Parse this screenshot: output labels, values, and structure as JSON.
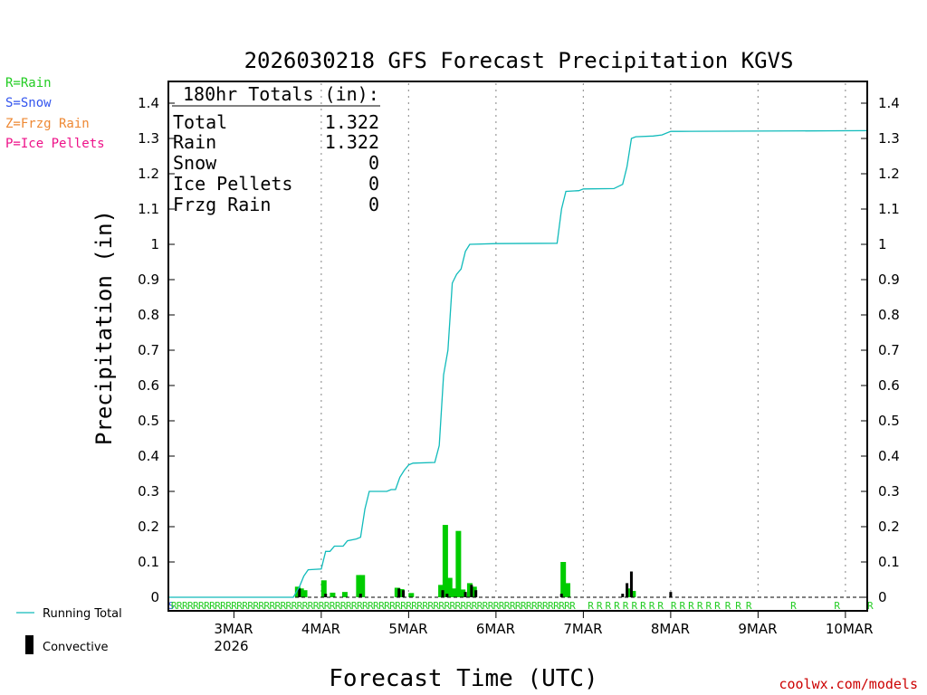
{
  "chart_data": {
    "type": "bar+line",
    "title": "2026030218 GFS Forecast Precipitation KGVS",
    "xlabel": "Forecast Time (UTC)",
    "ylabel": "Precipitation (in)",
    "ylim": [
      0,
      1.45
    ],
    "yticks": [
      "0",
      "0.1",
      "0.2",
      "0.3",
      "0.4",
      "0.5",
      "0.6",
      "0.7",
      "0.8",
      "0.9",
      "1",
      "1.1",
      "1.2",
      "1.3",
      "1.4"
    ],
    "x_start_day_offset": -0.75,
    "x_end_day_offset": 7.25,
    "xticks": [
      {
        "day": 0,
        "label": "3MAR",
        "sublabel": "2026"
      },
      {
        "day": 1,
        "label": "4MAR"
      },
      {
        "day": 2,
        "label": "5MAR"
      },
      {
        "day": 3,
        "label": "6MAR"
      },
      {
        "day": 4,
        "label": "7MAR"
      },
      {
        "day": 5,
        "label": "8MAR"
      },
      {
        "day": 6,
        "label": "9MAR"
      },
      {
        "day": 7,
        "label": "10MAR"
      }
    ],
    "totals": {
      "header": "180hr Totals (in):",
      "rows": [
        {
          "label": "Total",
          "value": "1.322"
        },
        {
          "label": "Rain",
          "value": "1.322"
        },
        {
          "label": "Snow",
          "value": "0"
        },
        {
          "label": "Ice Pellets",
          "value": "0"
        },
        {
          "label": "Frzg Rain",
          "value": "0"
        }
      ]
    },
    "ptype_legend": [
      {
        "label": "R=Rain",
        "color": "#22cc22"
      },
      {
        "label": "S=Snow",
        "color": "#3355ee"
      },
      {
        "label": "Z=Frzg Rain",
        "color": "#ee8833"
      },
      {
        "label": "P=Ice Pellets",
        "color": "#ee1188"
      }
    ],
    "series_legend": {
      "running_total": "Running Total",
      "convective": "Convective"
    },
    "colors": {
      "running_total": "#11bbbb",
      "rain_bar": "#00cc00",
      "convective_bar": "#000000",
      "ptype_rain": "#22cc22",
      "ptype_snow": "#3355ee",
      "grid": "#999999",
      "credit": "#cc0000"
    },
    "running_total": [
      [
        -0.75,
        0
      ],
      [
        0.68,
        0
      ],
      [
        0.75,
        0.03
      ],
      [
        0.8,
        0.06
      ],
      [
        0.85,
        0.078
      ],
      [
        1.0,
        0.08
      ],
      [
        1.05,
        0.13
      ],
      [
        1.1,
        0.13
      ],
      [
        1.15,
        0.145
      ],
      [
        1.25,
        0.145
      ],
      [
        1.3,
        0.16
      ],
      [
        1.4,
        0.165
      ],
      [
        1.45,
        0.17
      ],
      [
        1.5,
        0.25
      ],
      [
        1.55,
        0.3
      ],
      [
        1.75,
        0.3
      ],
      [
        1.8,
        0.305
      ],
      [
        1.85,
        0.305
      ],
      [
        1.9,
        0.34
      ],
      [
        1.95,
        0.36
      ],
      [
        2.0,
        0.375
      ],
      [
        2.05,
        0.38
      ],
      [
        2.3,
        0.382
      ],
      [
        2.35,
        0.43
      ],
      [
        2.4,
        0.63
      ],
      [
        2.45,
        0.7
      ],
      [
        2.5,
        0.89
      ],
      [
        2.55,
        0.915
      ],
      [
        2.6,
        0.93
      ],
      [
        2.65,
        0.98
      ],
      [
        2.7,
        1.0
      ],
      [
        3.0,
        1.002
      ],
      [
        3.7,
        1.003
      ],
      [
        3.75,
        1.1
      ],
      [
        3.8,
        1.15
      ],
      [
        3.95,
        1.152
      ],
      [
        4.0,
        1.157
      ],
      [
        4.35,
        1.158
      ],
      [
        4.45,
        1.17
      ],
      [
        4.5,
        1.22
      ],
      [
        4.55,
        1.3
      ],
      [
        4.6,
        1.305
      ],
      [
        4.8,
        1.307
      ],
      [
        4.9,
        1.31
      ],
      [
        5.0,
        1.32
      ],
      [
        5.1,
        1.32
      ],
      [
        7.25,
        1.322
      ]
    ],
    "rain_bars": [
      [
        0.73,
        0.03
      ],
      [
        0.77,
        0.025
      ],
      [
        0.81,
        0.02
      ],
      [
        1.03,
        0.048
      ],
      [
        1.13,
        0.013
      ],
      [
        1.27,
        0.015
      ],
      [
        1.43,
        0.063
      ],
      [
        1.47,
        0.063
      ],
      [
        1.87,
        0.027
      ],
      [
        1.92,
        0.023
      ],
      [
        2.03,
        0.012
      ],
      [
        2.37,
        0.035
      ],
      [
        2.42,
        0.205
      ],
      [
        2.47,
        0.055
      ],
      [
        2.52,
        0.025
      ],
      [
        2.57,
        0.188
      ],
      [
        2.62,
        0.022
      ],
      [
        2.7,
        0.04
      ],
      [
        2.75,
        0.03
      ],
      [
        3.77,
        0.1
      ],
      [
        3.82,
        0.04
      ],
      [
        4.52,
        0.025
      ],
      [
        4.57,
        0.018
      ]
    ],
    "convective_bars": [
      [
        0.75,
        0.025
      ],
      [
        1.05,
        0.01
      ],
      [
        1.45,
        0.01
      ],
      [
        1.89,
        0.025
      ],
      [
        1.94,
        0.02
      ],
      [
        2.39,
        0.02
      ],
      [
        2.44,
        0.01
      ],
      [
        2.65,
        0.015
      ],
      [
        2.72,
        0.035
      ],
      [
        2.77,
        0.02
      ],
      [
        3.75,
        0.01
      ],
      [
        4.45,
        0.01
      ],
      [
        4.5,
        0.04
      ],
      [
        4.55,
        0.073
      ],
      [
        5.0,
        0.015
      ]
    ],
    "ptype_marks": {
      "dense_start": -0.72,
      "dense_end": 3.9,
      "dense_step": 0.0625,
      "sparse": [
        4.05,
        4.15,
        4.25,
        4.35,
        4.45,
        4.55,
        4.65,
        4.75,
        4.85,
        5.0,
        5.1,
        5.2,
        5.3,
        5.4,
        5.5,
        5.62,
        5.74,
        5.86,
        6.37,
        6.87,
        7.25
      ],
      "symbol": "R"
    },
    "credit": "coolwx.com/models"
  }
}
